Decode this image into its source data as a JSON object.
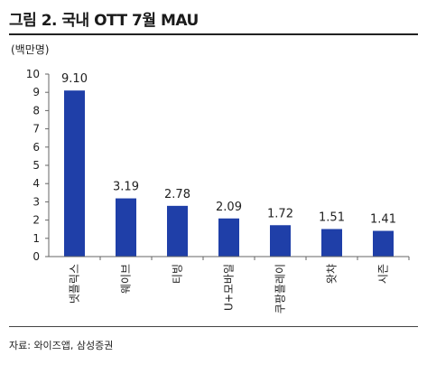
{
  "header": {
    "title": "그림 2. 국내 OTT 7월 MAU"
  },
  "footer": {
    "source": "자료: 와이즈앱, 삼성증권"
  },
  "colors": {
    "bar": "#1F3FA8",
    "axis": "#666666",
    "text": "#222222"
  },
  "chart_data": {
    "type": "bar",
    "title": "그림 2. 국내 OTT 7월 MAU",
    "ylabel": "(백만명)",
    "xlabel": "",
    "ylim": [
      0,
      10
    ],
    "yticks": [
      0,
      1,
      2,
      3,
      4,
      5,
      6,
      7,
      8,
      9,
      10
    ],
    "categories": [
      "넷플릭스",
      "웨이브",
      "티빙",
      "U+모바일",
      "쿠팡플레이",
      "왓챠",
      "시즌"
    ],
    "values": [
      9.1,
      3.19,
      2.78,
      2.09,
      1.72,
      1.51,
      1.41
    ],
    "value_labels": [
      "9.10",
      "3.19",
      "2.78",
      "2.09",
      "1.72",
      "1.51",
      "1.41"
    ],
    "grid": false,
    "legend": "none"
  }
}
